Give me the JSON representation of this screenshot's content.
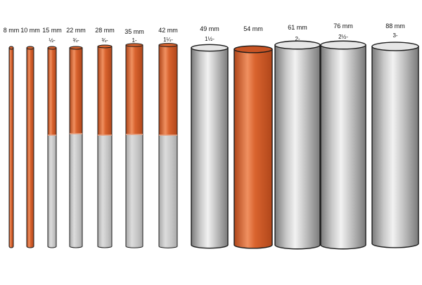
{
  "pipes": [
    {
      "size": "8 mm",
      "imperial": "",
      "material": "copper-over-plastic"
    },
    {
      "size": "10 mm",
      "imperial": "",
      "material": "copper-over-plastic"
    },
    {
      "size": "15 mm",
      "imperial": "½-",
      "material": "copper-over-plastic"
    },
    {
      "size": "22 mm",
      "imperial": "¾-",
      "material": "copper-over-plastic"
    },
    {
      "size": "28 mm",
      "imperial": "¾-",
      "material": "copper-over-plastic"
    },
    {
      "size": "35 mm",
      "imperial": "1-",
      "material": "copper-over-plastic"
    },
    {
      "size": "42 mm",
      "imperial": "1¼-",
      "material": "copper-over-plastic"
    },
    {
      "size": "49 mm",
      "imperial": "1½-",
      "material": "steel"
    },
    {
      "size": "54 mm",
      "imperial": "",
      "material": "copper"
    },
    {
      "size": "61 mm",
      "imperial": "2-",
      "material": "steel"
    },
    {
      "size": "76 mm",
      "imperial": "2½-",
      "material": "steel"
    },
    {
      "size": "88 mm",
      "imperial": "3-",
      "material": "steel"
    }
  ],
  "colors": {
    "copper_dark": "#b0461a",
    "copper_mid": "#d9632e",
    "copper_light": "#f09060",
    "plastic_dark": "#a9a9a9",
    "plastic_light": "#dcdcdc",
    "steel_dark": "#7a7a7a",
    "steel_light": "#f2f2f2",
    "outline": "#1a1a1a"
  }
}
